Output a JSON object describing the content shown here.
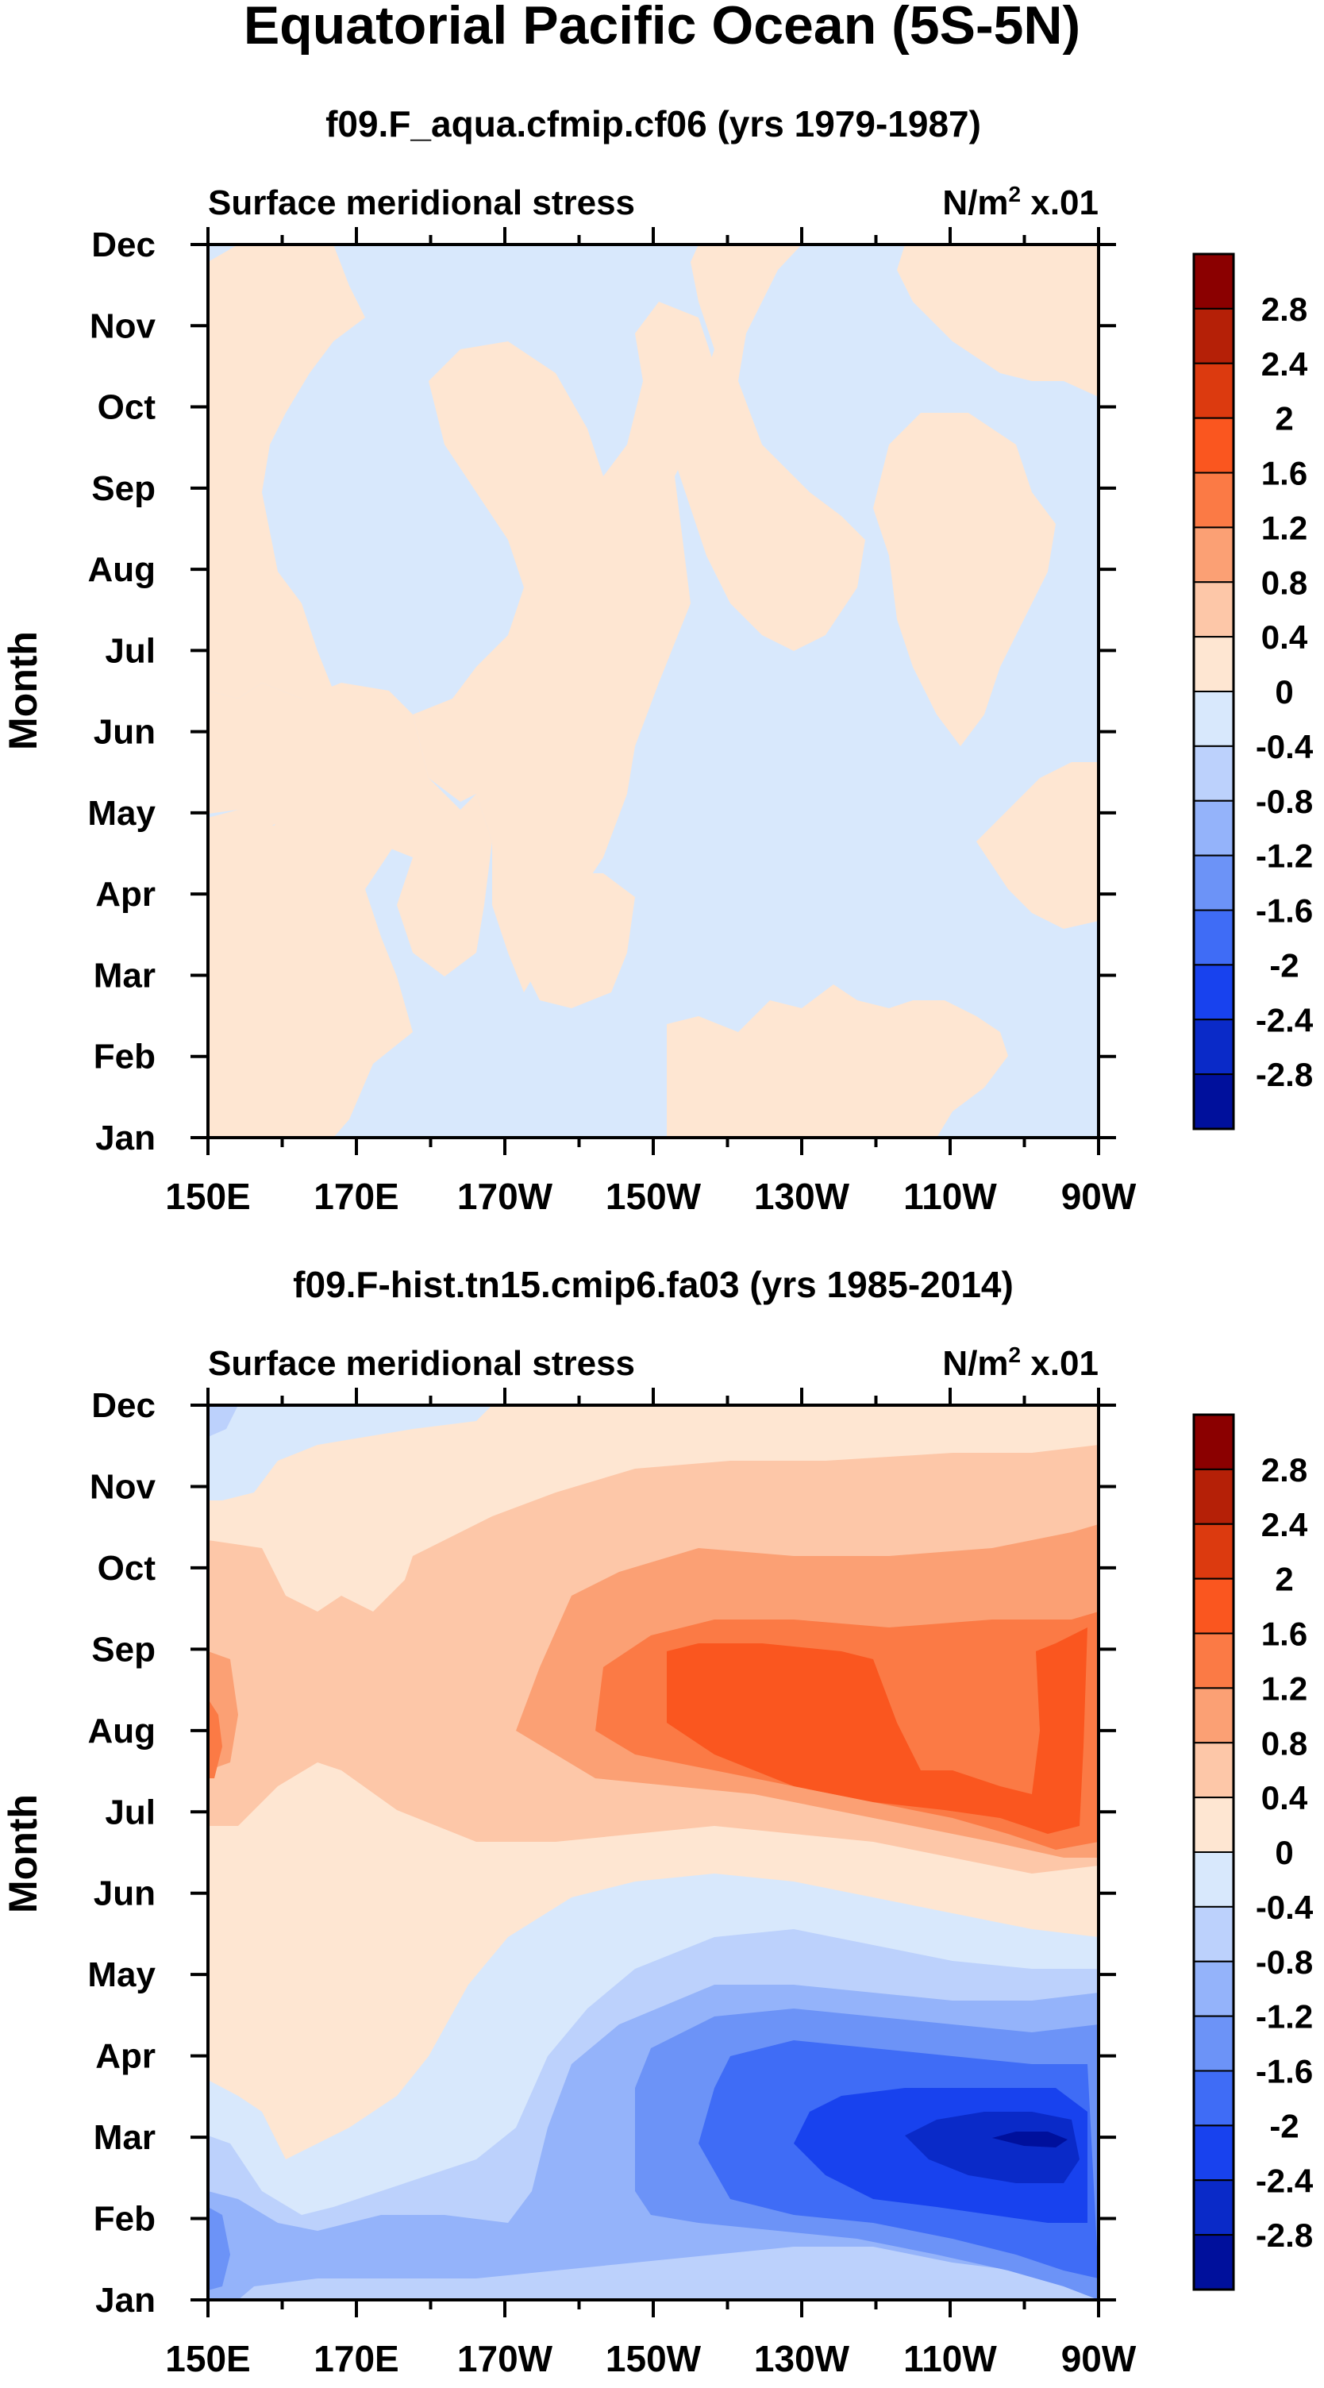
{
  "figure": {
    "title": "Equatorial Pacific Ocean (5S-5N)"
  },
  "chart_data": [
    {
      "type": "contour-filled",
      "subtitle": "f09.F_aqua.cfmip.cf06 (yrs 1979-1987)",
      "left_label": "Surface meridional stress",
      "units_label": "N/m",
      "units_sup": "2",
      "units_scale": "x.01",
      "ylabel": "Month",
      "months": [
        "Jan",
        "Feb",
        "Mar",
        "Apr",
        "May",
        "Jun",
        "Jul",
        "Aug",
        "Sep",
        "Oct",
        "Nov",
        "Dec"
      ],
      "longitude_ticks": [
        "150E",
        "170E",
        "170W",
        "150W",
        "130W",
        "110W",
        "90W"
      ],
      "longitude_range": [
        150,
        270
      ],
      "contour_levels": [
        "2.8",
        "2.4",
        "2",
        "1.6",
        "1.2",
        "0.8",
        "0.4",
        "0",
        "-0.4",
        "-0.8",
        "-1.2",
        "-1.6",
        "-2",
        "-2.4",
        "-2.8"
      ],
      "palette": [
        "#8b0000",
        "#b52007",
        "#dc3a0f",
        "#fa561f",
        "#fb7a45",
        "#fba074",
        "#fdc7a8",
        "#fee6d2",
        "#d8e8fc",
        "#bcd1fc",
        "#94b3fa",
        "#6c93f7",
        "#3f6cf6",
        "#1842ee",
        "#0a2ac8",
        "#00109c"
      ],
      "description_values": {
        "range": [
          -0.4,
          0.4
        ],
        "note": "Field alternates between 0 to 0.4 and -0.4 to 0 bands across the basin"
      }
    },
    {
      "type": "contour-filled",
      "subtitle": "f09.F-hist.tn15.cmip6.fa03 (yrs 1985-2014)",
      "left_label": "Surface meridional stress",
      "units_label": "N/m",
      "units_sup": "2",
      "units_scale": "x.01",
      "ylabel": "Month",
      "months": [
        "Jan",
        "Feb",
        "Mar",
        "Apr",
        "May",
        "Jun",
        "Jul",
        "Aug",
        "Sep",
        "Oct",
        "Nov",
        "Dec"
      ],
      "longitude_ticks": [
        "150E",
        "170E",
        "170W",
        "150W",
        "130W",
        "110W",
        "90W"
      ],
      "longitude_range": [
        150,
        270
      ],
      "contour_levels": [
        "2.8",
        "2.4",
        "2",
        "1.6",
        "1.2",
        "0.8",
        "0.4",
        "0",
        "-0.4",
        "-0.8",
        "-1.2",
        "-1.6",
        "-2",
        "-2.4",
        "-2.8"
      ],
      "palette": [
        "#8b0000",
        "#b52007",
        "#dc3a0f",
        "#fa561f",
        "#fb7a45",
        "#fba074",
        "#fdc7a8",
        "#fee6d2",
        "#d8e8fc",
        "#bcd1fc",
        "#94b3fa",
        "#6c93f7",
        "#3f6cf6",
        "#1842ee",
        "#0a2ac8",
        "#00109c"
      ],
      "description_values": {
        "max_approx": 2.0,
        "max_location": "130W-95W, Aug",
        "min_approx": -2.8,
        "min_location": "100W, Mar"
      }
    }
  ]
}
